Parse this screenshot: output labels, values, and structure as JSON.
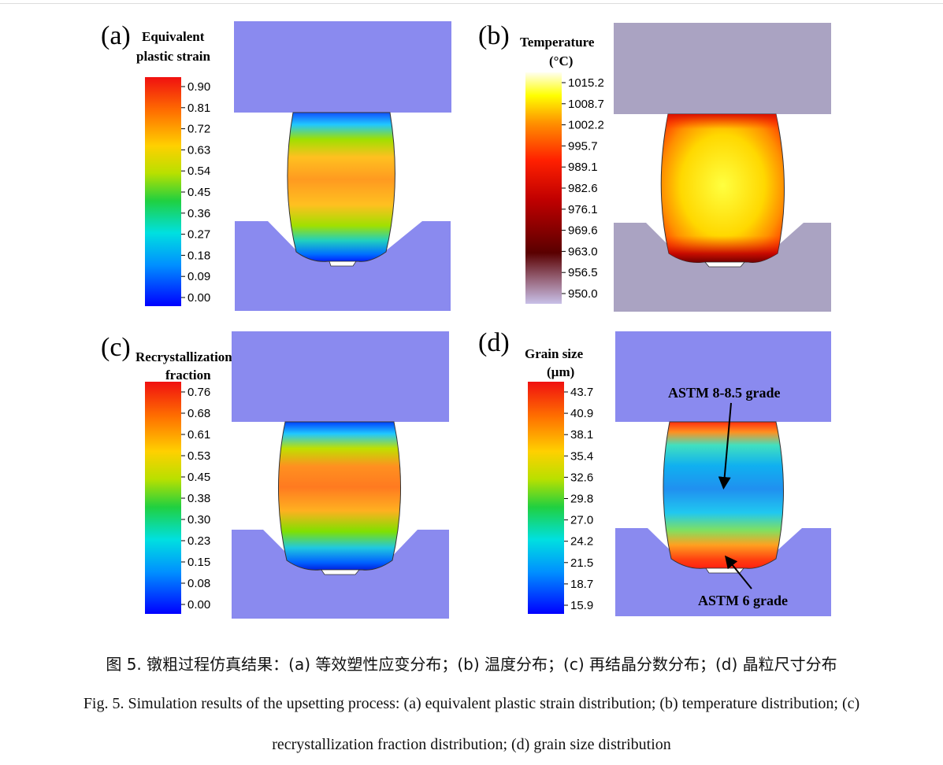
{
  "panels": {
    "a": {
      "letter": "(a)",
      "legend_title": [
        "Equivalent",
        "plastic strain"
      ],
      "ticks": [
        "0.90",
        "0.81",
        "0.72",
        "0.63",
        "0.54",
        "0.45",
        "0.36",
        "0.27",
        "0.18",
        "0.09",
        "0.00"
      ],
      "colormap": "jet",
      "die_color": "#8a8aef"
    },
    "b": {
      "letter": "(b)",
      "legend_title": [
        "Temperature",
        "(°C)"
      ],
      "ticks": [
        "1015.2",
        "1008.7",
        "1002.2",
        "995.7",
        "989.1",
        "982.6",
        "976.1",
        "969.6",
        "963.0",
        "956.5",
        "950.0"
      ],
      "colormap": "heat",
      "die_color": "#aaa3c2"
    },
    "c": {
      "letter": "(c)",
      "legend_title": [
        "Recrystallization",
        "fraction"
      ],
      "ticks": [
        "0.76",
        "0.68",
        "0.61",
        "0.53",
        "0.45",
        "0.38",
        "0.30",
        "0.23",
        "0.15",
        "0.08",
        "0.00"
      ],
      "colormap": "jet",
      "die_color": "#8a8aef"
    },
    "d": {
      "letter": "(d)",
      "legend_title": [
        "Grain size",
        "(µm)"
      ],
      "ticks": [
        "43.7",
        "40.9",
        "38.1",
        "35.4",
        "32.6",
        "29.8",
        "27.0",
        "24.2",
        "21.5",
        "18.7",
        "15.9"
      ],
      "colormap": "jet",
      "die_color": "#8a8aef",
      "annotations": [
        "ASTM 8-8.5 grade",
        "ASTM 6 grade"
      ]
    }
  },
  "caption": {
    "chinese": "图 5. 镦粗过程仿真结果：(a) 等效塑性应变分布；(b) 温度分布；(c) 再结晶分数分布；(d) 晶粒尺寸分布",
    "english_line1": "Fig. 5. Simulation results of the upsetting process: (a) equivalent plastic strain distribution; (b) temperature distribution; (c)",
    "english_line2": "recrystallization fraction distribution; (d) grain size distribution"
  }
}
